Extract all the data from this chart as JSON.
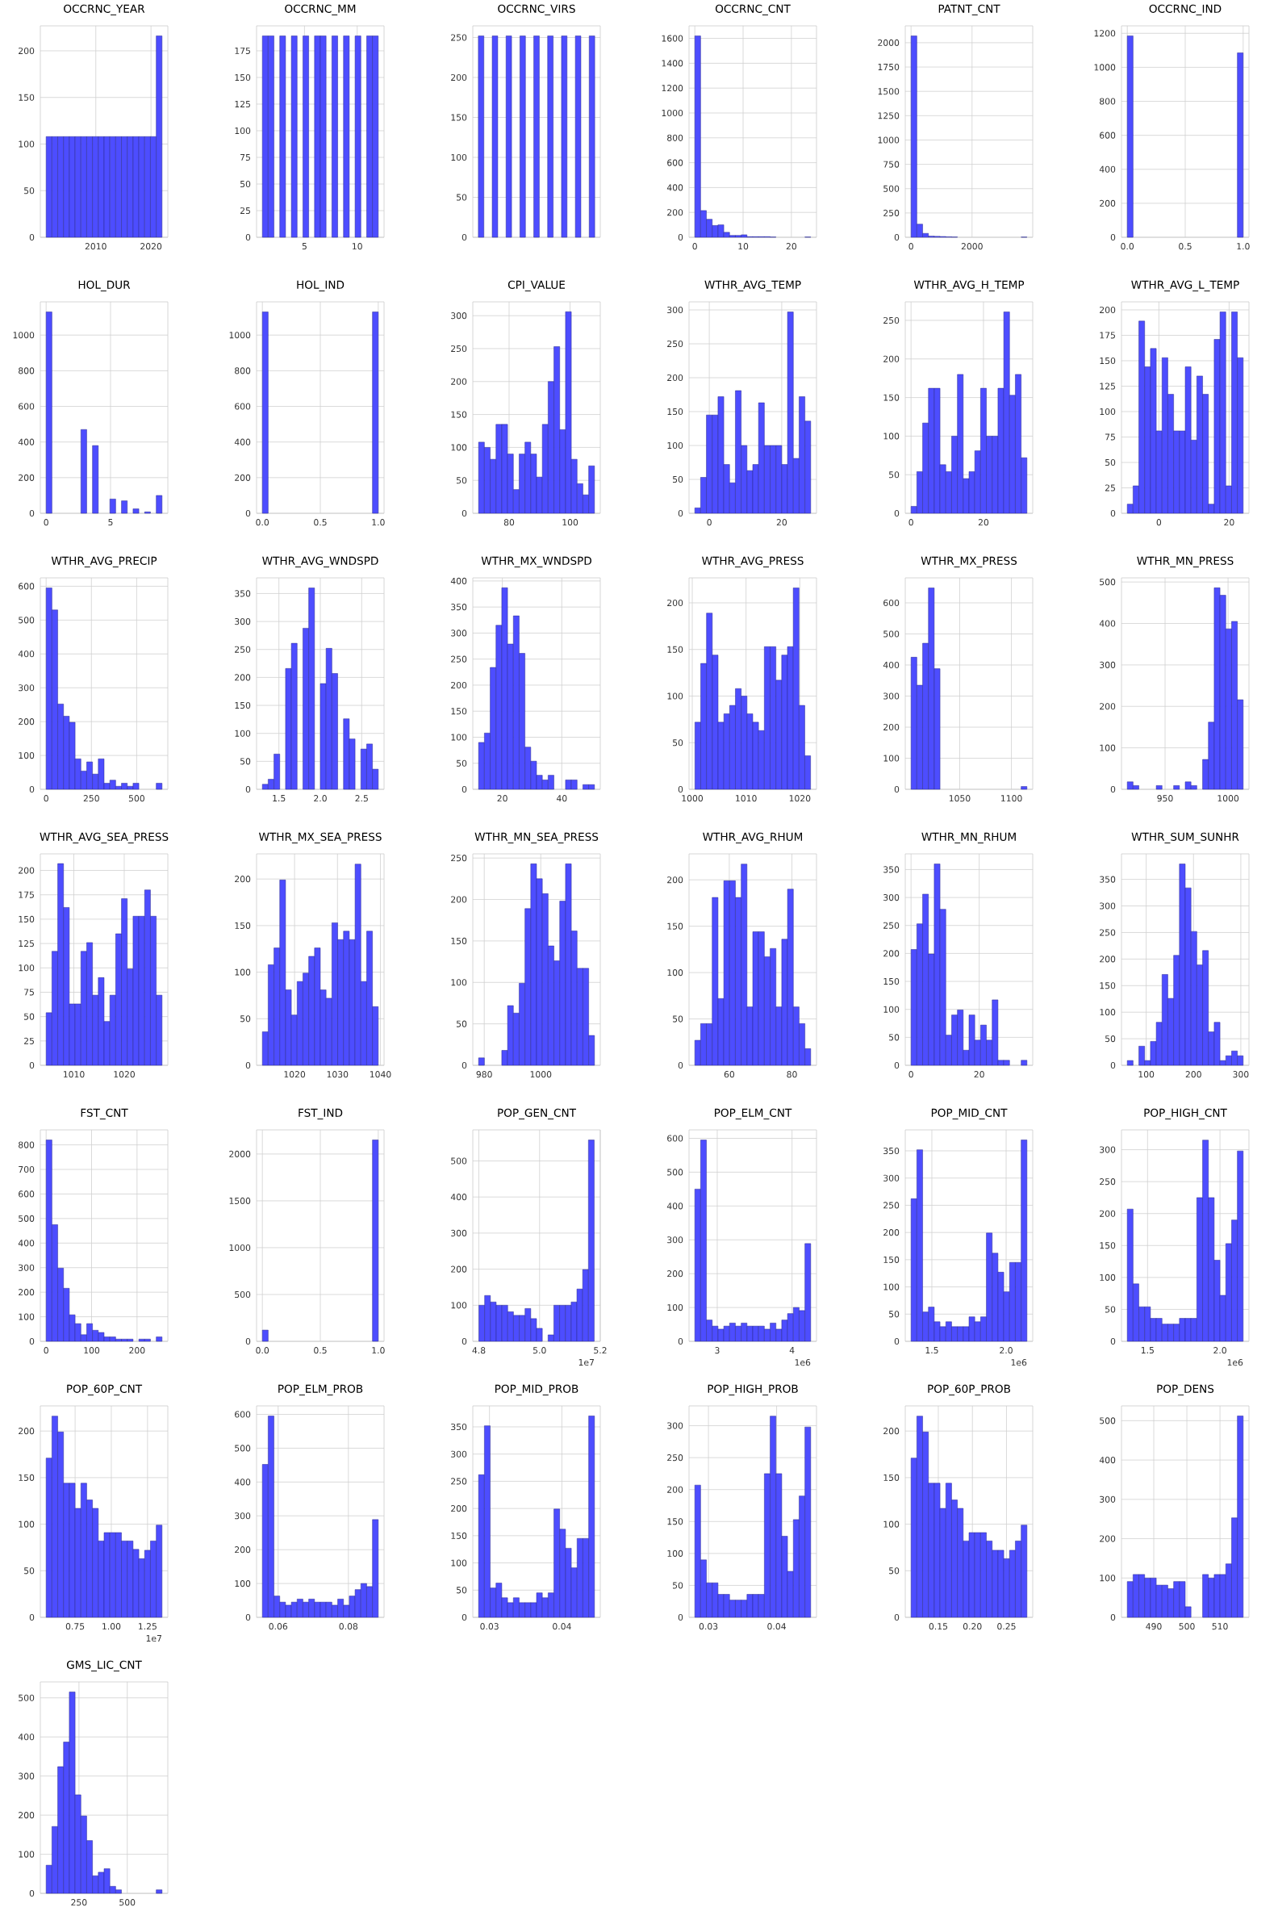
{
  "chart_data": [
    {
      "type": "histogram",
      "title": "OCCRNC_YEAR",
      "bins": [
        2001,
        2002.05,
        2003.1,
        2004.15,
        2005.2,
        2006.25,
        2007.3,
        2008.35,
        2009.4,
        2010.45,
        2011.5,
        2012.55,
        2013.6,
        2014.65,
        2015.7,
        2016.75,
        2017.8,
        2018.85,
        2019.9,
        2020.95,
        2022
      ],
      "values": [
        108,
        108,
        108,
        108,
        108,
        108,
        108,
        108,
        108,
        108,
        108,
        108,
        108,
        108,
        108,
        108,
        108,
        108,
        108,
        216
      ],
      "color": "#4d4dff",
      "xlim": [
        1999.95,
        2023.05
      ],
      "ylim": [
        0,
        226.8
      ],
      "xticks": [
        2010,
        2020
      ],
      "yticks": [
        0,
        50,
        100,
        150,
        200
      ],
      "grid": true
    },
    {
      "type": "histogram",
      "title": "OCCRNC_MM",
      "bins": [
        1,
        1.55,
        2.1,
        2.65,
        3.2,
        3.75,
        4.3,
        4.85,
        5.4,
        5.95,
        6.5,
        7.05,
        7.6,
        8.15,
        8.7,
        9.25,
        9.8,
        10.35,
        10.9,
        11.45,
        12
      ],
      "values": [
        189,
        189,
        0,
        189,
        0,
        189,
        0,
        189,
        0,
        189,
        189,
        0,
        189,
        0,
        189,
        0,
        189,
        0,
        189,
        189
      ],
      "color": "#4d4dff",
      "xlim": [
        0.45,
        12.55
      ],
      "ylim": [
        0,
        198.45
      ],
      "xticks": [
        5,
        10
      ],
      "yticks": [
        0,
        25,
        50,
        75,
        100,
        125,
        150,
        175
      ],
      "grid": true
    },
    {
      "type": "bar",
      "title": "OCCRNC_VIRS",
      "categories": [
        null,
        null,
        null,
        null,
        null,
        null,
        null,
        null,
        null
      ],
      "values": [
        252,
        252,
        252,
        252,
        252,
        252,
        252,
        252,
        252
      ],
      "color": "#4d4dff",
      "ylim": [
        0,
        264.6
      ],
      "yticks": [
        0,
        50,
        100,
        150,
        200,
        250
      ],
      "grid": true
    },
    {
      "type": "histogram",
      "title": "OCCRNC_CNT",
      "bins": [
        0,
        1.2,
        2.4,
        3.6,
        4.8,
        6,
        7.2,
        8.4,
        9.6,
        10.8,
        12,
        13.2,
        14.4,
        15.6,
        16.8,
        18,
        19.2,
        20.4,
        21.6,
        22.8,
        24
      ],
      "values": [
        1620,
        215,
        145,
        95,
        100,
        40,
        15,
        15,
        20,
        5,
        5,
        5,
        5,
        2,
        0,
        0,
        0,
        0,
        0,
        2
      ],
      "color": "#4d4dff",
      "xlim": [
        -1.2,
        25.2
      ],
      "ylim": [
        0,
        1701
      ],
      "xticks": [
        0,
        10,
        20
      ],
      "yticks": [
        0,
        200,
        400,
        600,
        800,
        1000,
        1200,
        1400,
        1600
      ],
      "grid": true
    },
    {
      "type": "histogram",
      "title": "PATNT_CNT",
      "bins": [
        0,
        190,
        380,
        570,
        760,
        950,
        1140,
        1330,
        1520,
        1710,
        1900,
        2090,
        2280,
        2470,
        2660,
        2850,
        3040,
        3230,
        3420,
        3610,
        3800
      ],
      "values": [
        2070,
        135,
        40,
        12,
        10,
        8,
        5,
        3,
        0,
        0,
        0,
        0,
        0,
        0,
        0,
        0,
        0,
        0,
        0,
        2
      ],
      "color": "#4d4dff",
      "xlim": [
        -190,
        3990
      ],
      "ylim": [
        0,
        2173.5
      ],
      "xticks": [
        0,
        2000
      ],
      "yticks": [
        0,
        250,
        500,
        750,
        1000,
        1250,
        1500,
        1750,
        2000
      ],
      "grid": true
    },
    {
      "type": "histogram",
      "title": "OCCRNC_IND",
      "bins": [
        0,
        0.05,
        0.1,
        0.15,
        0.2,
        0.25,
        0.3,
        0.35,
        0.4,
        0.45,
        0.5,
        0.55,
        0.6,
        0.65,
        0.7,
        0.75,
        0.8,
        0.85,
        0.9,
        0.95,
        1
      ],
      "values": [
        1185,
        0,
        0,
        0,
        0,
        0,
        0,
        0,
        0,
        0,
        0,
        0,
        0,
        0,
        0,
        0,
        0,
        0,
        0,
        1085
      ],
      "color": "#4d4dff",
      "xlim": [
        -0.05,
        1.05
      ],
      "ylim": [
        0,
        1244
      ],
      "xticks": [
        {
          "value": 0,
          "label": "0.0"
        },
        {
          "value": 0.5,
          "label": "0.5"
        },
        {
          "value": 1,
          "label": "1.0"
        }
      ],
      "yticks": [
        0,
        200,
        400,
        600,
        800,
        1000,
        1200
      ],
      "grid": true
    },
    {
      "type": "histogram",
      "title": "HOL_DUR",
      "bins": [
        0,
        0.45,
        0.9,
        1.35,
        1.8,
        2.25,
        2.7,
        3.15,
        3.6,
        4.05,
        4.5,
        4.95,
        5.4,
        5.85,
        6.3,
        6.75,
        7.2,
        7.65,
        8.1,
        8.55,
        9
      ],
      "values": [
        1130,
        0,
        0,
        0,
        0,
        0,
        470,
        0,
        380,
        0,
        0,
        80,
        0,
        70,
        0,
        25,
        0,
        8,
        0,
        100
      ],
      "color": "#4d4dff",
      "xlim": [
        -0.45,
        9.45
      ],
      "ylim": [
        0,
        1186.5
      ],
      "xticks": [
        0,
        5
      ],
      "yticks": [
        0,
        200,
        400,
        600,
        800,
        1000
      ],
      "grid": true
    },
    {
      "type": "histogram",
      "title": "HOL_IND",
      "bins": [
        0,
        0.05,
        0.1,
        0.15,
        0.2,
        0.25,
        0.3,
        0.35,
        0.4,
        0.45,
        0.5,
        0.55,
        0.6,
        0.65,
        0.7,
        0.75,
        0.8,
        0.85,
        0.9,
        0.95,
        1
      ],
      "values": [
        1130,
        0,
        0,
        0,
        0,
        0,
        0,
        0,
        0,
        0,
        0,
        0,
        0,
        0,
        0,
        0,
        0,
        0,
        0,
        1130
      ],
      "color": "#4d4dff",
      "xlim": [
        -0.05,
        1.05
      ],
      "ylim": [
        0,
        1186.5
      ],
      "xticks": [
        {
          "value": 0,
          "label": "0.0"
        },
        {
          "value": 0.5,
          "label": "0.5"
        },
        {
          "value": 1,
          "label": "1.0"
        }
      ],
      "yticks": [
        0,
        200,
        400,
        600,
        800,
        1000
      ],
      "grid": true
    },
    {
      "type": "histogram",
      "title": "CPI_VALUE",
      "bins": [
        70,
        71.9,
        73.8,
        75.7,
        77.6,
        79.5,
        81.4,
        83.3,
        85.2,
        87.1,
        89,
        90.9,
        92.8,
        94.7,
        96.6,
        98.5,
        100.4,
        102.3,
        104.2,
        106.1,
        108
      ],
      "values": [
        108,
        100,
        82,
        135,
        135,
        90,
        36,
        90,
        108,
        90,
        55,
        135,
        200,
        253,
        127,
        306,
        82,
        45,
        28,
        72
      ],
      "color": "#4d4dff",
      "xlim": [
        68.1,
        109.9
      ],
      "ylim": [
        0,
        321
      ],
      "xticks": [
        80,
        100
      ],
      "yticks": [
        0,
        50,
        100,
        150,
        200,
        250,
        300
      ],
      "grid": true
    },
    {
      "type": "histogram",
      "title": "WTHR_AVG_TEMP",
      "bins": [
        -4,
        -2.4,
        -0.8,
        0.8,
        2.4,
        4,
        5.6,
        7.2,
        8.8,
        10.4,
        12,
        13.6,
        15.2,
        16.8,
        18.4,
        20,
        21.6,
        23.2,
        24.8,
        26.4,
        28
      ],
      "values": [
        8,
        53,
        145,
        145,
        172,
        72,
        45,
        181,
        100,
        63,
        72,
        163,
        100,
        100,
        100,
        72,
        297,
        81,
        172,
        136
      ],
      "color": "#4d4dff",
      "xlim": [
        -5.6,
        29.6
      ],
      "ylim": [
        0,
        311.9
      ],
      "xticks": [
        0,
        20
      ],
      "yticks": [
        0,
        50,
        100,
        150,
        200,
        250,
        300
      ],
      "grid": true
    },
    {
      "type": "histogram",
      "title": "WTHR_AVG_H_TEMP",
      "bins": [
        0,
        1.6,
        3.2,
        4.8,
        6.4,
        8,
        9.6,
        11.2,
        12.8,
        14.4,
        16,
        17.6,
        19.2,
        20.8,
        22.4,
        24,
        25.6,
        27.2,
        28.8,
        30.4,
        32
      ],
      "values": [
        9,
        54,
        117,
        162,
        162,
        63,
        54,
        100,
        180,
        45,
        54,
        81,
        162,
        100,
        100,
        162,
        261,
        153,
        180,
        72
      ],
      "color": "#4d4dff",
      "xlim": [
        -1.6,
        33.6
      ],
      "ylim": [
        0,
        274
      ],
      "xticks": [
        0,
        20
      ],
      "yticks": [
        0,
        50,
        100,
        150,
        200,
        250
      ],
      "grid": true
    },
    {
      "type": "histogram",
      "title": "WTHR_AVG_L_TEMP",
      "bins": [
        -9,
        -7.35,
        -5.7,
        -4.05,
        -2.4,
        -0.75,
        0.9,
        2.55,
        4.2,
        5.85,
        7.5,
        9.15,
        10.8,
        12.45,
        14.1,
        15.75,
        17.4,
        19.05,
        20.7,
        22.35,
        24
      ],
      "values": [
        9,
        27,
        189,
        144,
        162,
        81,
        153,
        117,
        81,
        81,
        144,
        72,
        135,
        117,
        9,
        171,
        198,
        27,
        198,
        153
      ],
      "color": "#4d4dff",
      "xlim": [
        -10.65,
        25.65
      ],
      "ylim": [
        0,
        207.9
      ],
      "xticks": [
        0,
        20
      ],
      "yticks": [
        0,
        25,
        50,
        75,
        100,
        125,
        150,
        175,
        200
      ],
      "grid": true
    },
    {
      "type": "histogram",
      "title": "WTHR_AVG_PRECIP",
      "bins": [
        0,
        32,
        64,
        96,
        128,
        160,
        192,
        224,
        256,
        288,
        320,
        352,
        384,
        416,
        448,
        480,
        512,
        544,
        576,
        608,
        640
      ],
      "values": [
        595,
        530,
        252,
        216,
        198,
        90,
        54,
        81,
        45,
        90,
        18,
        27,
        9,
        18,
        9,
        18,
        0,
        0,
        0,
        18
      ],
      "color": "#4d4dff",
      "xlim": [
        -32,
        672
      ],
      "ylim": [
        0,
        624.75
      ],
      "xticks": [
        0,
        250,
        500
      ],
      "yticks": [
        0,
        100,
        200,
        300,
        400,
        500,
        600
      ],
      "grid": true
    },
    {
      "type": "histogram",
      "title": "WTHR_AVG_WNDSPD",
      "bins": [
        1.3,
        1.37,
        1.44,
        1.51,
        1.58,
        1.65,
        1.72,
        1.79,
        1.86,
        1.93,
        2,
        2.07,
        2.14,
        2.21,
        2.28,
        2.35,
        2.42,
        2.49,
        2.56,
        2.63,
        2.7
      ],
      "values": [
        9,
        18,
        63,
        0,
        216,
        261,
        0,
        288,
        360,
        0,
        189,
        252,
        207,
        0,
        126,
        90,
        0,
        72,
        81,
        36
      ],
      "color": "#4d4dff",
      "xlim": [
        1.23,
        2.77
      ],
      "ylim": [
        0,
        378
      ],
      "xticks": [
        1.5,
        {
          "value": 2,
          "label": "2.0"
        },
        2.5
      ],
      "yticks": [
        0,
        50,
        100,
        150,
        200,
        250,
        300,
        350
      ],
      "grid": true
    },
    {
      "type": "histogram",
      "title": "WTHR_MX_WNDSPD",
      "bins": [
        12,
        13.95,
        15.9,
        17.85,
        19.8,
        21.75,
        23.7,
        25.65,
        27.6,
        29.55,
        31.5,
        33.45,
        35.4,
        37.35,
        39.3,
        41.25,
        43.2,
        45.15,
        47.1,
        49.05,
        51
      ],
      "values": [
        90,
        108,
        234,
        315,
        387,
        279,
        333,
        261,
        81,
        54,
        27,
        18,
        27,
        0,
        0,
        18,
        18,
        0,
        9,
        9
      ],
      "color": "#4d4dff",
      "xlim": [
        10.05,
        52.95
      ],
      "ylim": [
        0,
        406
      ],
      "xticks": [
        20,
        40
      ],
      "yticks": [
        0,
        50,
        100,
        150,
        200,
        250,
        300,
        350,
        400
      ],
      "grid": true
    },
    {
      "type": "histogram",
      "title": "WTHR_AVG_PRESS",
      "bins": [
        1000.5,
        1001.575,
        1002.65,
        1003.725,
        1004.8,
        1005.875,
        1006.95,
        1008.025,
        1009.1,
        1010.175,
        1011.25,
        1012.325,
        1013.4,
        1014.475,
        1015.55,
        1016.625,
        1017.7,
        1018.775,
        1019.85,
        1020.925,
        1022
      ],
      "values": [
        72,
        135,
        189,
        144,
        72,
        81,
        90,
        108,
        100,
        81,
        72,
        63,
        153,
        153,
        117,
        144,
        153,
        216,
        90,
        36
      ],
      "color": "#4d4dff",
      "xlim": [
        999.4,
        1023.1
      ],
      "ylim": [
        0,
        226.8
      ],
      "xticks": [
        1000,
        1010,
        1020
      ],
      "yticks": [
        0,
        50,
        100,
        150,
        200
      ],
      "grid": true
    },
    {
      "type": "histogram",
      "title": "WTHR_MX_PRESS",
      "bins": [
        1003,
        1008.6,
        1014.2,
        1019.8,
        1025.4,
        1031,
        1036.6,
        1042.2,
        1047.8,
        1053.4,
        1059,
        1064.6,
        1070.2,
        1075.8,
        1081.4,
        1087,
        1092.6,
        1098.2,
        1103.8,
        1109.4,
        1115
      ],
      "values": [
        425,
        335,
        470,
        648,
        388,
        0,
        0,
        0,
        0,
        0,
        0,
        0,
        0,
        0,
        0,
        0,
        0,
        0,
        0,
        9
      ],
      "color": "#4d4dff",
      "xlim": [
        997.4,
        1120.6
      ],
      "ylim": [
        0,
        680.4
      ],
      "xticks": [
        1050,
        1100
      ],
      "yticks": [
        0,
        100,
        200,
        300,
        400,
        500,
        600
      ],
      "grid": true
    },
    {
      "type": "histogram",
      "title": "WTHR_MN_PRESS",
      "bins": [
        920,
        924.6,
        929.2,
        933.8,
        938.4,
        943,
        947.6,
        952.2,
        956.8,
        961.4,
        966,
        970.6,
        975.2,
        979.8,
        984.4,
        989,
        993.6,
        998.2,
        1002.8,
        1007.4,
        1012
      ],
      "values": [
        18,
        9,
        0,
        0,
        0,
        9,
        0,
        0,
        9,
        0,
        18,
        9,
        0,
        72,
        162,
        486,
        468,
        387,
        405,
        216
      ],
      "color": "#4d4dff",
      "xlim": [
        915.4,
        1016.6
      ],
      "ylim": [
        0,
        510
      ],
      "xticks": [
        950,
        1000
      ],
      "yticks": [
        0,
        100,
        200,
        300,
        400,
        500
      ],
      "grid": true
    },
    {
      "type": "histogram",
      "title": "WTHR_AVG_SEA_PRESS",
      "bins": [
        1004.5,
        1005.65,
        1006.8,
        1007.95,
        1009.1,
        1010.25,
        1011.4,
        1012.55,
        1013.7,
        1014.85,
        1016,
        1017.15,
        1018.3,
        1019.45,
        1020.6,
        1021.75,
        1022.9,
        1024.05,
        1025.2,
        1026.35,
        1027.5
      ],
      "values": [
        54,
        117,
        207,
        162,
        63,
        63,
        117,
        126,
        72,
        90,
        45,
        72,
        135,
        171,
        99,
        153,
        153,
        180,
        153,
        72
      ],
      "color": "#4d4dff",
      "xlim": [
        1003.35,
        1028.65
      ],
      "ylim": [
        0,
        217
      ],
      "xticks": [
        1010,
        1020
      ],
      "yticks": [
        0,
        25,
        50,
        75,
        100,
        125,
        150,
        175,
        200
      ],
      "grid": true
    },
    {
      "type": "histogram",
      "title": "WTHR_MX_SEA_PRESS",
      "bins": [
        1012.5,
        1013.85,
        1015.2,
        1016.55,
        1017.9,
        1019.25,
        1020.6,
        1021.95,
        1023.3,
        1024.65,
        1026,
        1027.35,
        1028.7,
        1030.05,
        1031.4,
        1032.75,
        1034.1,
        1035.45,
        1036.8,
        1038.15,
        1039.5
      ],
      "values": [
        36,
        108,
        126,
        199,
        81,
        54,
        90,
        99,
        117,
        126,
        81,
        72,
        153,
        135,
        144,
        135,
        216,
        90,
        144,
        63
      ],
      "color": "#4d4dff",
      "xlim": [
        1011.15,
        1040.85
      ],
      "ylim": [
        0,
        227
      ],
      "xticks": [
        1020,
        1030,
        1040
      ],
      "yticks": [
        0,
        50,
        100,
        150,
        200
      ],
      "grid": true
    },
    {
      "type": "histogram",
      "title": "WTHR_MN_SEA_PRESS",
      "bins": [
        978,
        980.05,
        982.1,
        984.15,
        986.2,
        988.25,
        990.3,
        992.35,
        994.4,
        996.45,
        998.5,
        1000.55,
        1002.6,
        1004.65,
        1006.7,
        1008.75,
        1010.8,
        1012.85,
        1014.9,
        1016.95,
        1019
      ],
      "values": [
        9,
        0,
        0,
        0,
        18,
        72,
        63,
        99,
        189,
        243,
        225,
        207,
        144,
        126,
        198,
        243,
        162,
        117,
        117,
        36
      ],
      "color": "#4d4dff",
      "xlim": [
        975.95,
        1021.05
      ],
      "ylim": [
        0,
        255
      ],
      "xticks": [
        980,
        1000
      ],
      "yticks": [
        0,
        50,
        100,
        150,
        200,
        250
      ],
      "grid": true
    },
    {
      "type": "histogram",
      "title": "WTHR_AVG_RHUM",
      "bins": [
        49,
        50.85,
        52.7,
        54.55,
        56.4,
        58.25,
        60.1,
        61.95,
        63.8,
        65.65,
        67.5,
        69.35,
        71.2,
        73.05,
        74.9,
        76.75,
        78.6,
        80.45,
        82.3,
        84.15,
        86
      ],
      "values": [
        27,
        45,
        45,
        181,
        72,
        199,
        199,
        181,
        217,
        63,
        144,
        144,
        117,
        126,
        63,
        136,
        190,
        63,
        45,
        18
      ],
      "color": "#4d4dff",
      "xlim": [
        47.15,
        87.85
      ],
      "ylim": [
        0,
        228
      ],
      "xticks": [
        60,
        80
      ],
      "yticks": [
        0,
        50,
        100,
        150,
        200
      ],
      "grid": true
    },
    {
      "type": "histogram",
      "title": "WTHR_MN_RHUM",
      "bins": [
        0,
        1.7,
        3.4,
        5.1,
        6.8,
        8.5,
        10.2,
        11.9,
        13.6,
        15.3,
        17,
        18.7,
        20.4,
        22.1,
        23.8,
        25.5,
        27.2,
        28.9,
        30.6,
        32.3,
        34
      ],
      "values": [
        207,
        253,
        306,
        199,
        360,
        279,
        54,
        90,
        99,
        27,
        90,
        45,
        72,
        45,
        117,
        9,
        9,
        0,
        0,
        9
      ],
      "color": "#4d4dff",
      "xlim": [
        -1.7,
        35.7
      ],
      "ylim": [
        0,
        378
      ],
      "xticks": [
        0,
        20
      ],
      "yticks": [
        0,
        50,
        100,
        150,
        200,
        250,
        300,
        350
      ],
      "grid": true
    },
    {
      "type": "histogram",
      "title": "WTHR_SUM_SUNHR",
      "bins": [
        60,
        72.25,
        84.5,
        96.75,
        109,
        121.25,
        133.5,
        145.75,
        158,
        170.25,
        182.5,
        194.75,
        207,
        219.25,
        231.5,
        243.75,
        256,
        268.25,
        280.5,
        292.75,
        305
      ],
      "values": [
        9,
        0,
        36,
        9,
        45,
        81,
        171,
        126,
        207,
        379,
        334,
        252,
        189,
        216,
        63,
        81,
        9,
        18,
        27,
        18
      ],
      "color": "#4d4dff",
      "xlim": [
        47.75,
        317.25
      ],
      "ylim": [
        0,
        398
      ],
      "xticks": [
        100,
        200,
        300
      ],
      "yticks": [
        0,
        50,
        100,
        150,
        200,
        250,
        300,
        350
      ],
      "grid": true
    },
    {
      "type": "histogram",
      "title": "FST_CNT",
      "bins": [
        0,
        12.75,
        25.5,
        38.25,
        51,
        63.75,
        76.5,
        89.25,
        102,
        114.75,
        127.5,
        140.25,
        153,
        165.75,
        178.5,
        191.25,
        204,
        216.75,
        229.5,
        242.25,
        255
      ],
      "values": [
        820,
        475,
        298,
        216,
        108,
        72,
        27,
        72,
        45,
        36,
        18,
        18,
        9,
        9,
        9,
        0,
        9,
        9,
        0,
        18
      ],
      "color": "#4d4dff",
      "xlim": [
        -12.75,
        267.75
      ],
      "ylim": [
        0,
        861
      ],
      "xticks": [
        0,
        100,
        200
      ],
      "yticks": [
        0,
        100,
        200,
        300,
        400,
        500,
        600,
        700,
        800
      ],
      "grid": true
    },
    {
      "type": "histogram",
      "title": "FST_IND",
      "bins": [
        0,
        0.05,
        0.1,
        0.15,
        0.2,
        0.25,
        0.3,
        0.35,
        0.4,
        0.45,
        0.5,
        0.55,
        0.6,
        0.65,
        0.7,
        0.75,
        0.8,
        0.85,
        0.9,
        0.95,
        1
      ],
      "values": [
        120,
        0,
        0,
        0,
        0,
        0,
        0,
        0,
        0,
        0,
        0,
        0,
        0,
        0,
        0,
        0,
        0,
        0,
        0,
        2150
      ],
      "color": "#4d4dff",
      "xlim": [
        -0.05,
        1.05
      ],
      "ylim": [
        0,
        2257.5
      ],
      "xticks": [
        {
          "value": 0,
          "label": "0.0"
        },
        {
          "value": 0.5,
          "label": "0.5"
        },
        {
          "value": 1,
          "label": "1.0"
        }
      ],
      "yticks": [
        0,
        500,
        1000,
        1500,
        2000
      ],
      "grid": true
    },
    {
      "type": "histogram",
      "title": "POP_GEN_CNT",
      "bins": [
        4.8,
        4.819,
        4.838,
        4.857,
        4.876,
        4.895,
        4.914,
        4.933,
        4.952,
        4.971,
        4.99,
        5.009,
        5.028,
        5.047,
        5.066,
        5.085,
        5.104,
        5.123,
        5.142,
        5.161,
        5.18
      ],
      "values": [
        100,
        127,
        109,
        100,
        100,
        82,
        72,
        72,
        91,
        63,
        36,
        0,
        18,
        100,
        100,
        100,
        109,
        145,
        199,
        558
      ],
      "color": "#4d4dff",
      "xlim": [
        4.78,
        5.2
      ],
      "ylim": [
        0,
        586
      ],
      "xticks": [
        4.8,
        {
          "value": 5,
          "label": "5.0"
        },
        5.2
      ],
      "yticks": [
        0,
        100,
        200,
        300,
        400,
        500
      ],
      "grid": true,
      "annotations": [
        "1e7"
      ]
    },
    {
      "type": "histogram",
      "title": "POP_ELM_CNT",
      "bins": [
        2.7,
        2.7775,
        2.855,
        2.9325,
        3.01,
        3.0875,
        3.165,
        3.2425,
        3.32,
        3.3975,
        3.475,
        3.5525,
        3.63,
        3.7075,
        3.785,
        3.8625,
        3.94,
        4.0175,
        4.095,
        4.1725,
        4.25
      ],
      "values": [
        450,
        595,
        63,
        45,
        36,
        45,
        54,
        45,
        54,
        45,
        45,
        45,
        36,
        54,
        36,
        63,
        82,
        100,
        91,
        289
      ],
      "color": "#4d4dff",
      "xlim": [
        2.6225,
        4.3275
      ],
      "ylim": [
        0,
        625
      ],
      "xticks": [
        3,
        4
      ],
      "yticks": [
        0,
        100,
        200,
        300,
        400,
        500,
        600
      ],
      "grid": true,
      "annotations": [
        "1e6"
      ]
    },
    {
      "type": "histogram",
      "title": "POP_MID_CNT",
      "bins": [
        1.36,
        1.399,
        1.438,
        1.477,
        1.516,
        1.555,
        1.594,
        1.633,
        1.672,
        1.711,
        1.75,
        1.789,
        1.828,
        1.867,
        1.906,
        1.945,
        1.984,
        2.023,
        2.062,
        2.101,
        2.14
      ],
      "values": [
        262,
        352,
        54,
        63,
        36,
        27,
        36,
        27,
        27,
        27,
        45,
        36,
        45,
        199,
        162,
        127,
        91,
        145,
        145,
        370
      ],
      "color": "#4d4dff",
      "xlim": [
        1.321,
        2.179
      ],
      "ylim": [
        0,
        388.5
      ],
      "xticks": [
        1.5,
        {
          "value": 2,
          "label": "2.0"
        }
      ],
      "yticks": [
        0,
        50,
        100,
        150,
        200,
        250,
        300,
        350
      ],
      "grid": true,
      "annotations": [
        "1e6"
      ]
    },
    {
      "type": "histogram",
      "title": "POP_HIGH_CNT",
      "bins": [
        1.36,
        1.4,
        1.44,
        1.48,
        1.52,
        1.56,
        1.6,
        1.64,
        1.68,
        1.72,
        1.76,
        1.8,
        1.84,
        1.88,
        1.92,
        1.96,
        2,
        2.04,
        2.08,
        2.12,
        2.16
      ],
      "values": [
        207,
        90,
        54,
        54,
        36,
        36,
        27,
        27,
        27,
        36,
        36,
        36,
        225,
        315,
        225,
        127,
        72,
        153,
        190,
        298
      ],
      "color": "#4d4dff",
      "xlim": [
        1.32,
        2.2
      ],
      "ylim": [
        0,
        331
      ],
      "xticks": [
        1.5,
        {
          "value": 2,
          "label": "2.0"
        }
      ],
      "yticks": [
        0,
        50,
        100,
        150,
        200,
        250,
        300
      ],
      "grid": true,
      "annotations": [
        "1e6"
      ]
    },
    {
      "type": "histogram",
      "title": "POP_60P_CNT",
      "bins": [
        0.55,
        0.59,
        0.63,
        0.67,
        0.71,
        0.75,
        0.79,
        0.83,
        0.87,
        0.91,
        0.95,
        0.99,
        1.03,
        1.07,
        1.11,
        1.15,
        1.19,
        1.23,
        1.27,
        1.31,
        1.35
      ],
      "values": [
        171,
        216,
        199,
        144,
        144,
        117,
        144,
        126,
        117,
        82,
        91,
        91,
        91,
        82,
        82,
        73,
        63,
        72,
        82,
        99
      ],
      "color": "#4d4dff",
      "xlim": [
        0.51,
        1.39
      ],
      "ylim": [
        0,
        227
      ],
      "xticks": [
        0.75,
        {
          "value": 1,
          "label": "1.00"
        },
        1.25
      ],
      "yticks": [
        0,
        50,
        100,
        150,
        200
      ],
      "grid": true,
      "annotations": [
        "1e7"
      ]
    },
    {
      "type": "histogram",
      "title": "POP_ELM_PROB",
      "bins": [
        0.0555,
        0.05715,
        0.0588,
        0.06045,
        0.0621,
        0.06375,
        0.0654,
        0.06705,
        0.0687,
        0.07035,
        0.072,
        0.07365,
        0.0753,
        0.07695,
        0.0786,
        0.08025,
        0.0819,
        0.08355,
        0.0852,
        0.08685,
        0.0885
      ],
      "values": [
        452,
        595,
        63,
        45,
        36,
        45,
        54,
        45,
        54,
        45,
        45,
        45,
        36,
        54,
        36,
        63,
        82,
        100,
        91,
        289
      ],
      "color": "#4d4dff",
      "xlim": [
        0.05385,
        0.09015
      ],
      "ylim": [
        0,
        625
      ],
      "xticks": [
        0.06,
        0.08
      ],
      "yticks": [
        0,
        100,
        200,
        300,
        400,
        500,
        600
      ],
      "grid": true
    },
    {
      "type": "histogram",
      "title": "POP_MID_PROB",
      "bins": [
        0.0285,
        0.0293,
        0.0301,
        0.0309,
        0.0317,
        0.0325,
        0.0333,
        0.0341,
        0.0349,
        0.0357,
        0.0365,
        0.0373,
        0.0381,
        0.0389,
        0.0397,
        0.0405,
        0.0413,
        0.0421,
        0.0429,
        0.0437,
        0.0445
      ],
      "values": [
        262,
        352,
        54,
        63,
        36,
        27,
        36,
        27,
        27,
        27,
        45,
        36,
        45,
        199,
        162,
        127,
        91,
        145,
        145,
        370
      ],
      "color": "#4d4dff",
      "xlim": [
        0.0277,
        0.0453
      ],
      "ylim": [
        0,
        388.5
      ],
      "xticks": [
        0.03,
        0.04
      ],
      "yticks": [
        0,
        50,
        100,
        150,
        200,
        250,
        300,
        350
      ],
      "grid": true
    },
    {
      "type": "histogram",
      "title": "POP_HIGH_PROB",
      "bins": [
        0.028,
        0.02885,
        0.0297,
        0.03055,
        0.0314,
        0.03225,
        0.0331,
        0.03395,
        0.0348,
        0.03565,
        0.0365,
        0.03735,
        0.0382,
        0.03905,
        0.0399,
        0.04075,
        0.0416,
        0.04245,
        0.0433,
        0.04415,
        0.045
      ],
      "values": [
        207,
        90,
        54,
        54,
        36,
        36,
        27,
        27,
        27,
        36,
        36,
        36,
        225,
        315,
        225,
        127,
        72,
        153,
        190,
        298
      ],
      "color": "#4d4dff",
      "xlim": [
        0.02715,
        0.04585
      ],
      "ylim": [
        0,
        331
      ],
      "xticks": [
        0.03,
        0.04
      ],
      "yticks": [
        0,
        50,
        100,
        150,
        200,
        250,
        300
      ],
      "grid": true
    },
    {
      "type": "histogram",
      "title": "POP_60P_PROB",
      "bins": [
        0.11,
        0.1185,
        0.127,
        0.1355,
        0.144,
        0.1525,
        0.161,
        0.1695,
        0.178,
        0.1865,
        0.195,
        0.2035,
        0.212,
        0.2205,
        0.229,
        0.2375,
        0.246,
        0.2545,
        0.263,
        0.2715,
        0.28
      ],
      "values": [
        171,
        216,
        199,
        144,
        144,
        117,
        144,
        126,
        117,
        82,
        91,
        91,
        91,
        82,
        72,
        72,
        63,
        72,
        82,
        99
      ],
      "color": "#4d4dff",
      "xlim": [
        0.1015,
        0.2885
      ],
      "ylim": [
        0,
        227
      ],
      "xticks": [
        0.15,
        {
          "value": 0.2,
          "label": "0.20"
        },
        0.25
      ],
      "yticks": [
        0,
        50,
        100,
        150,
        200
      ],
      "grid": true
    },
    {
      "type": "histogram",
      "title": "POP_DENS",
      "bins": [
        482,
        483.75,
        485.5,
        487.25,
        489,
        490.75,
        492.5,
        494.25,
        496,
        497.75,
        499.5,
        501.25,
        503,
        504.75,
        506.5,
        508.25,
        510,
        511.75,
        513.5,
        515.25,
        517
      ],
      "values": [
        91,
        109,
        109,
        100,
        100,
        82,
        82,
        73,
        91,
        91,
        27,
        0,
        0,
        109,
        100,
        109,
        109,
        136,
        253,
        512
      ],
      "color": "#4d4dff",
      "xlim": [
        480.25,
        518.75
      ],
      "ylim": [
        0,
        537.6
      ],
      "xticks": [
        490,
        500,
        510
      ],
      "yticks": [
        0,
        100,
        200,
        300,
        400,
        500
      ],
      "grid": true
    },
    {
      "type": "histogram",
      "title": "GMS_LIC_CNT",
      "bins": [
        80,
        110,
        140,
        170,
        200,
        230,
        260,
        290,
        320,
        350,
        380,
        410,
        440,
        470,
        500,
        530,
        560,
        590,
        620,
        650,
        680
      ],
      "values": [
        72,
        171,
        324,
        387,
        515,
        252,
        198,
        135,
        45,
        54,
        63,
        18,
        9,
        0,
        0,
        0,
        0,
        0,
        0,
        9
      ],
      "color": "#4d4dff",
      "xlim": [
        50,
        710
      ],
      "ylim": [
        0,
        540.75
      ],
      "xticks": [
        250,
        500
      ],
      "yticks": [
        0,
        100,
        200,
        300,
        400,
        500
      ],
      "grid": true
    }
  ]
}
